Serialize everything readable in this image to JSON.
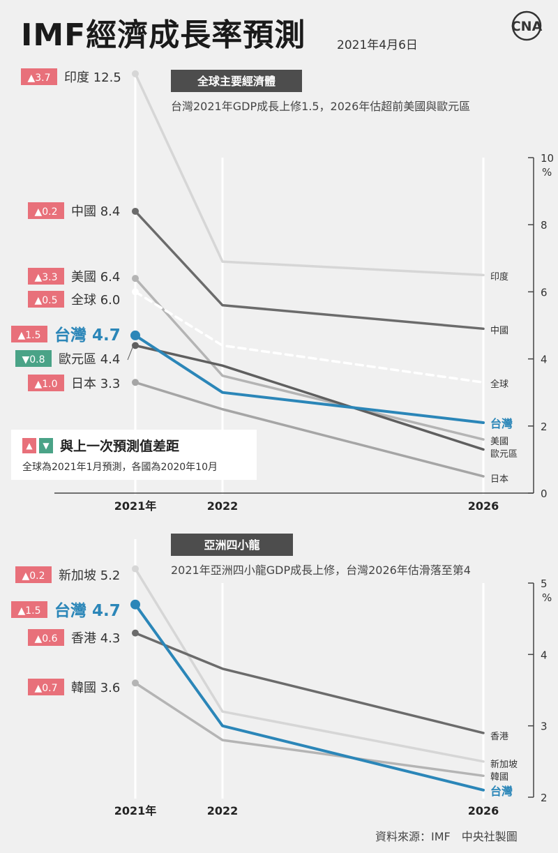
{
  "header": {
    "title": "IMF經濟成長率預測",
    "date": "2021年4月6日",
    "logo_text": "中央通訊社"
  },
  "legend": {
    "up_symbol": "▲",
    "down_symbol": "▼",
    "title": "與上一次預測值差距",
    "note": "全球為2021年1月預測，各國為2020年10月"
  },
  "source": "資料來源：IMF　中央社製圖",
  "colors": {
    "background": "#f0f0f0",
    "taiwan": "#2b86b8",
    "up_badge": "#e8707a",
    "down_badge": "#4aa387",
    "section_label_bg": "#4d4d4d"
  },
  "chart_data": [
    {
      "type": "line",
      "section_label": "全球主要經濟體",
      "subtitle": "台灣2021年GDP成長上修1.5，2026年估超前美國與歐元區",
      "x": [
        "2021年",
        "2022",
        "2026"
      ],
      "x_positions": [
        2021,
        2022,
        2026
      ],
      "unit": "%",
      "ylim": [
        0,
        10
      ],
      "yticks": [
        0,
        2,
        4,
        6,
        8,
        10
      ],
      "series": [
        {
          "name": "印度",
          "values": [
            12.5,
            6.9,
            6.5
          ],
          "value_label": "12.5",
          "change": "3.7",
          "direction": "up",
          "color": "#d6d6d6",
          "dashed": false,
          "end_label": "印度"
        },
        {
          "name": "中國",
          "values": [
            8.4,
            5.6,
            4.9
          ],
          "value_label": "8.4",
          "change": "0.2",
          "direction": "up",
          "color": "#6b6b6b",
          "dashed": false,
          "end_label": "中國"
        },
        {
          "name": "美國",
          "values": [
            6.4,
            3.5,
            1.6
          ],
          "value_label": "6.4",
          "change": "3.3",
          "direction": "up",
          "color": "#b4b4b4",
          "dashed": false,
          "end_label": "美國"
        },
        {
          "name": "全球",
          "values": [
            6.0,
            4.4,
            3.3
          ],
          "value_label": "6.0",
          "change": "0.5",
          "direction": "up",
          "color": "#ffffff",
          "dashed": true,
          "end_label": "全球"
        },
        {
          "name": "台灣",
          "values": [
            4.7,
            3.0,
            2.1
          ],
          "value_label": "4.7",
          "change": "1.5",
          "direction": "up",
          "color": "#2b86b8",
          "dashed": false,
          "highlight": true,
          "end_label": "台灣"
        },
        {
          "name": "歐元區",
          "values": [
            4.4,
            3.8,
            1.3
          ],
          "value_label": "4.4",
          "change": "0.8",
          "direction": "down",
          "color": "#5f5f5f",
          "dashed": false,
          "end_label": "歐元區"
        },
        {
          "name": "日本",
          "values": [
            3.3,
            2.5,
            0.5
          ],
          "value_label": "3.3",
          "change": "1.0",
          "direction": "up",
          "color": "#a5a5a5",
          "dashed": false,
          "end_label": "日本"
        }
      ]
    },
    {
      "type": "line",
      "section_label": "亞洲四小龍",
      "subtitle": "2021年亞洲四小龍GDP成長上修，台灣2026年估滑落至第4",
      "x": [
        "2021年",
        "2022",
        "2026"
      ],
      "x_positions": [
        2021,
        2022,
        2026
      ],
      "unit": "%",
      "ylim": [
        2,
        5
      ],
      "yticks": [
        2,
        3,
        4,
        5
      ],
      "series": [
        {
          "name": "新加坡",
          "values": [
            5.2,
            3.2,
            2.5
          ],
          "value_label": "5.2",
          "change": "0.2",
          "direction": "up",
          "color": "#d6d6d6",
          "dashed": false,
          "end_label": "新加坡"
        },
        {
          "name": "台灣",
          "values": [
            4.7,
            3.0,
            2.1
          ],
          "value_label": "4.7",
          "change": "1.5",
          "direction": "up",
          "color": "#2b86b8",
          "dashed": false,
          "highlight": true,
          "end_label": "台灣"
        },
        {
          "name": "香港",
          "values": [
            4.3,
            3.8,
            2.9
          ],
          "value_label": "4.3",
          "change": "0.6",
          "direction": "up",
          "color": "#6b6b6b",
          "dashed": false,
          "end_label": "香港"
        },
        {
          "name": "韓國",
          "values": [
            3.6,
            2.8,
            2.3
          ],
          "value_label": "3.6",
          "change": "0.7",
          "direction": "up",
          "color": "#b4b4b4",
          "dashed": false,
          "end_label": "韓國"
        }
      ]
    }
  ]
}
